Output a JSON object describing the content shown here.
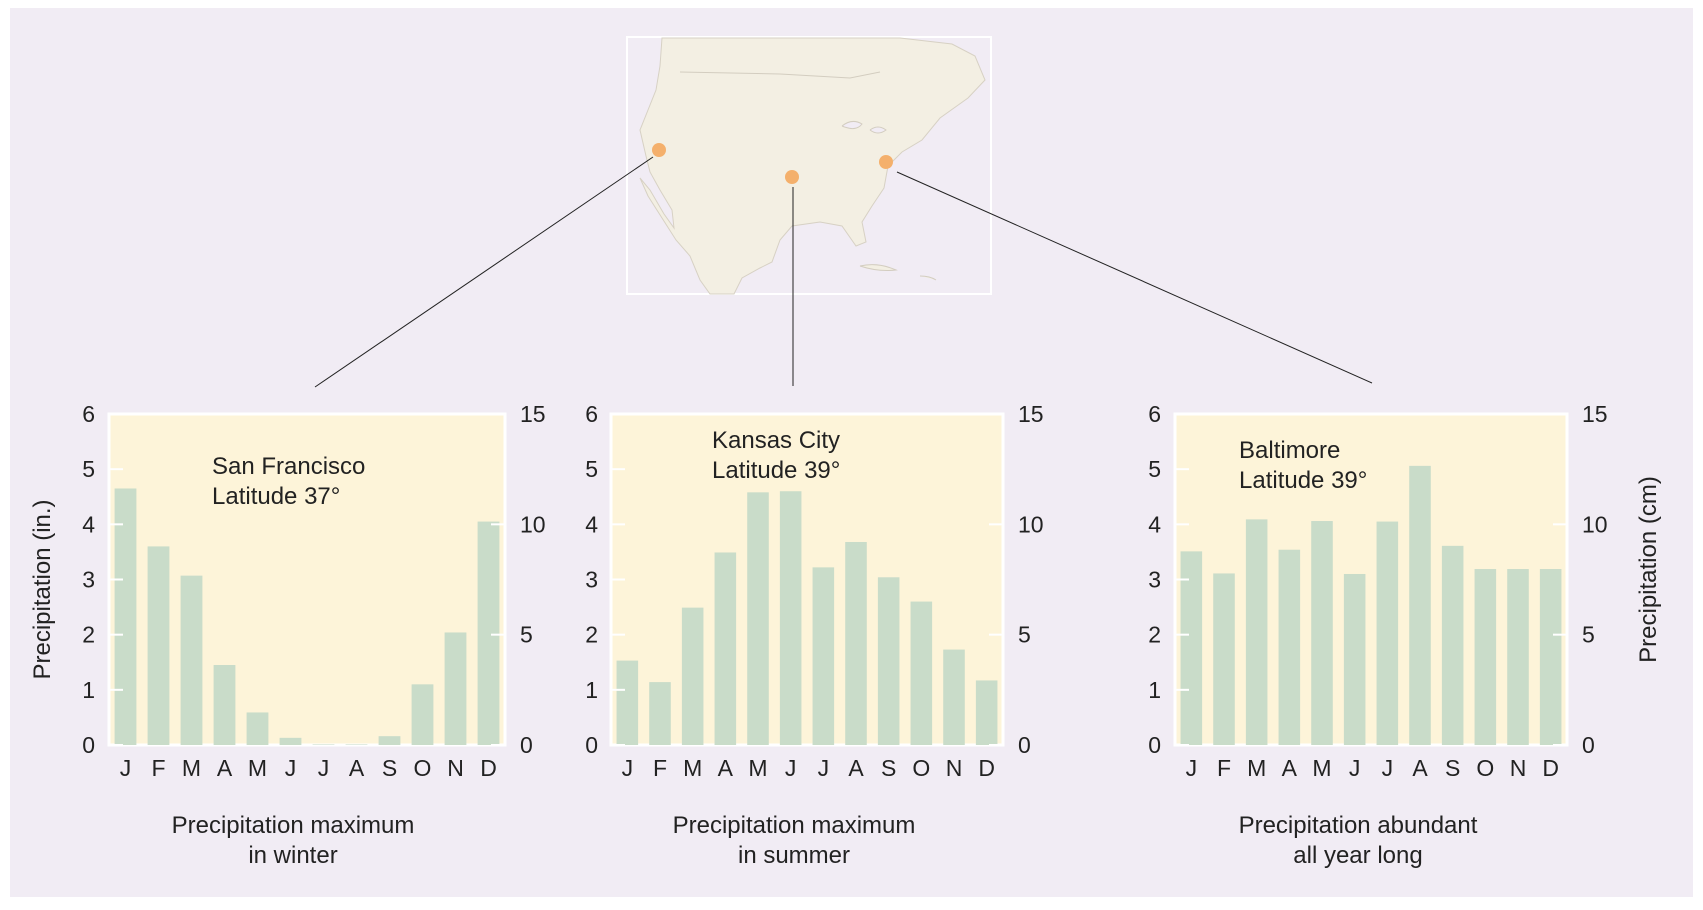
{
  "colors": {
    "background": "#f1ecf4",
    "plot_area": "#fdf4d9",
    "bar": "#c9dcc9",
    "map_land": "#f3efe3",
    "city_marker": "#f4b06c",
    "connector": "#222222"
  },
  "shared": {
    "y_left_label": "Precipitation (in.)",
    "y_right_label": "Precipitation (cm)",
    "left_ticks": [
      "0",
      "1",
      "2",
      "3",
      "4",
      "5",
      "6"
    ],
    "right_ticks": [
      "0",
      "5",
      "10",
      "15"
    ]
  },
  "map": {
    "name": "north-america-map",
    "cities": [
      "San Francisco",
      "Kansas City",
      "Baltimore"
    ]
  },
  "chart_data": [
    {
      "type": "bar",
      "categories": [
        "J",
        "F",
        "M",
        "A",
        "M",
        "J",
        "J",
        "A",
        "S",
        "O",
        "N",
        "D"
      ],
      "series": [
        {
          "values": [
            4.65,
            3.6,
            3.07,
            1.45,
            0.59,
            0.13,
            0.01,
            0.01,
            0.16,
            1.1,
            2.04,
            4.05
          ]
        }
      ],
      "annotation_line1": "San Francisco",
      "annotation_line2": "Latitude 37°",
      "caption_line1": "Precipitation maximum",
      "caption_line2": "in winter",
      "ylim": [
        0,
        6
      ],
      "y2lim": [
        0,
        15
      ],
      "ylabel": "Precipitation (in.)",
      "y2label": "",
      "grid": false
    },
    {
      "type": "bar",
      "categories": [
        "J",
        "F",
        "M",
        "A",
        "M",
        "J",
        "J",
        "A",
        "S",
        "O",
        "N",
        "D"
      ],
      "series": [
        {
          "values": [
            1.53,
            1.14,
            2.49,
            3.49,
            4.58,
            4.6,
            3.22,
            3.68,
            3.04,
            2.6,
            1.73,
            1.17
          ]
        }
      ],
      "annotation_line1": "Kansas City",
      "annotation_line2": "Latitude 39°",
      "caption_line1": "Precipitation maximum",
      "caption_line2": "in summer",
      "ylim": [
        0,
        6
      ],
      "y2lim": [
        0,
        15
      ],
      "ylabel": "",
      "y2label": "",
      "grid": false
    },
    {
      "type": "bar",
      "categories": [
        "J",
        "F",
        "M",
        "A",
        "M",
        "J",
        "J",
        "A",
        "S",
        "O",
        "N",
        "D"
      ],
      "series": [
        {
          "values": [
            3.51,
            3.11,
            4.09,
            3.54,
            4.06,
            3.1,
            4.05,
            5.06,
            3.61,
            3.19,
            3.19,
            3.19
          ]
        }
      ],
      "annotation_line1": "Baltimore",
      "annotation_line2": "Latitude 39°",
      "caption_line1": "Precipitation abundant",
      "caption_line2": "all year long",
      "ylim": [
        0,
        6
      ],
      "y2lim": [
        0,
        15
      ],
      "ylabel": "",
      "y2label": "Precipitation (cm)",
      "grid": false
    }
  ]
}
